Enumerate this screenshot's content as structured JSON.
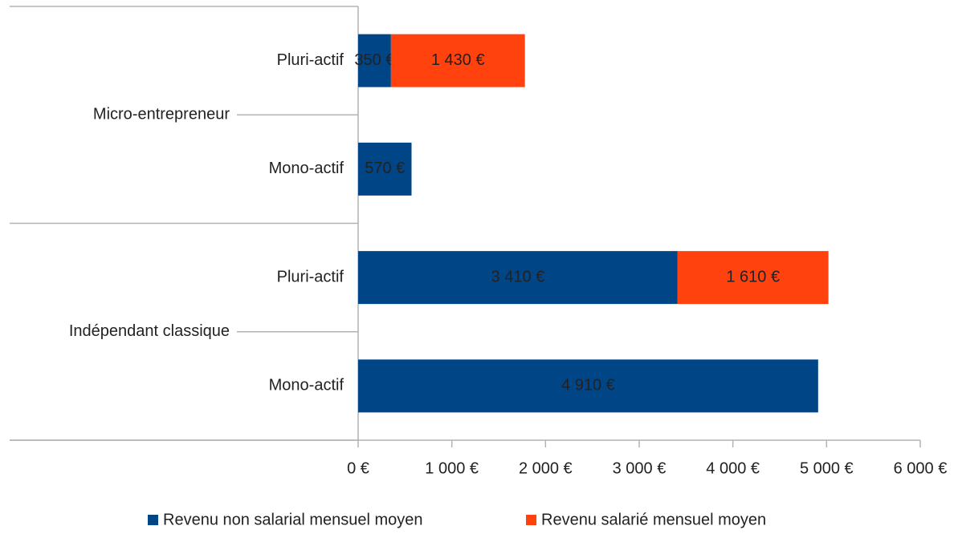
{
  "chart_data": {
    "type": "stacked-bar-horizontal",
    "groups": [
      {
        "name": "Micro-entrepreneur",
        "categories": [
          "Pluri-actif",
          "Mono-actif"
        ]
      },
      {
        "name": "Indépendant classique",
        "categories": [
          "Pluri-actif",
          "Mono-actif"
        ]
      }
    ],
    "series": [
      {
        "name": "Revenu non salarial mensuel moyen",
        "color": "#004586",
        "values": [
          350,
          570,
          3410,
          4910
        ],
        "value_labels": [
          "350 €",
          "570 €",
          "3 410 €",
          "4 910 €"
        ]
      },
      {
        "name": "Revenu salarié mensuel moyen",
        "color": "#ff420e",
        "values": [
          1430,
          null,
          1610,
          null
        ],
        "value_labels": [
          "1 430 €",
          null,
          "1 610 €",
          null
        ]
      }
    ],
    "xlim": [
      0,
      6000
    ],
    "xticks": [
      {
        "value": 0,
        "label": "0 €"
      },
      {
        "value": 1000,
        "label": "1 000 €"
      },
      {
        "value": 2000,
        "label": "2 000 €"
      },
      {
        "value": 3000,
        "label": "3 000 €"
      },
      {
        "value": 4000,
        "label": "4 000 €"
      },
      {
        "value": 5000,
        "label": "5 000 €"
      },
      {
        "value": 6000,
        "label": "6 000 €"
      }
    ],
    "legend": "bottom"
  }
}
